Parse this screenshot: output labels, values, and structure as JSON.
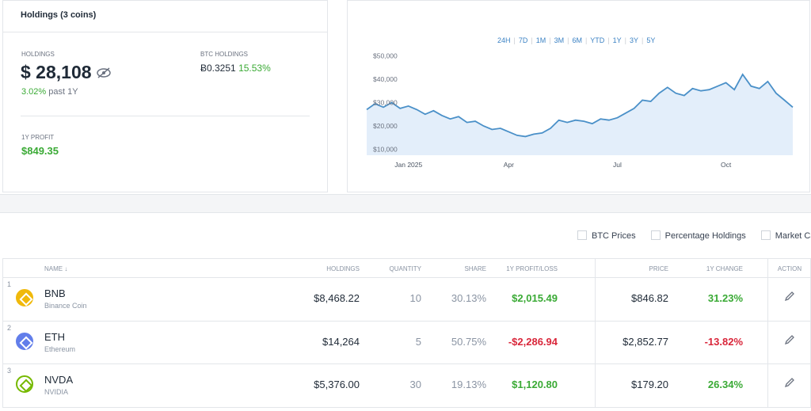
{
  "holdings_card": {
    "title": "Holdings (3 coins)",
    "holdings_label": "HOLDINGS",
    "holdings_value": "$ 28,108",
    "change": "3.02%",
    "change_period": "past 1Y",
    "btc_label": "BTC HOLDINGS",
    "btc_value": "Ƀ0.3251",
    "btc_change": "15.53%",
    "profit_label": "1Y PROFIT",
    "profit_value": "$849.35"
  },
  "chart_data": {
    "type": "line",
    "ranges": [
      "24H",
      "7D",
      "1M",
      "3M",
      "6M",
      "YTD",
      "1Y",
      "3Y",
      "5Y"
    ],
    "categories": [
      null,
      null,
      null,
      null,
      null,
      "Jan 2025",
      null,
      null,
      null,
      null,
      null,
      null,
      null,
      null,
      null,
      null,
      null,
      "Apr",
      null,
      null,
      null,
      null,
      null,
      null,
      null,
      null,
      null,
      null,
      null,
      null,
      "Jul",
      null,
      null,
      null,
      null,
      null,
      null,
      null,
      null,
      null,
      null,
      null,
      null,
      "Oct",
      null,
      null,
      null,
      null,
      null,
      null,
      null,
      null
    ],
    "values": [
      27000,
      29500,
      28000,
      30000,
      27500,
      28500,
      27000,
      25000,
      26500,
      24500,
      23000,
      24000,
      21500,
      22000,
      20000,
      18500,
      19000,
      17500,
      16000,
      15500,
      16500,
      17000,
      19000,
      22500,
      21500,
      22500,
      22000,
      21000,
      23000,
      22500,
      23500,
      25500,
      27500,
      31000,
      30500,
      34000,
      36500,
      34000,
      33000,
      36000,
      35000,
      35500,
      37000,
      38500,
      35500,
      42000,
      37000,
      36000,
      39000,
      34000,
      31000,
      28000
    ],
    "color": "#4a90c8",
    "fill": "#e3eefa",
    "ylim": [
      7500,
      52500
    ],
    "yticks": [
      {
        "value": 10000,
        "label": "$10,000"
      },
      {
        "value": 20000,
        "label": "$20,000"
      },
      {
        "value": 30000,
        "label": "$30,000"
      },
      {
        "value": 40000,
        "label": "$40,000"
      },
      {
        "value": 50000,
        "label": "$50,000"
      }
    ]
  },
  "filters": [
    "BTC Prices",
    "Percentage Holdings",
    "Market Cap"
  ],
  "table": {
    "columns": [
      "NAME",
      "HOLDINGS",
      "QUANTITY",
      "SHARE",
      "1Y PROFIT/LOSS",
      "PRICE",
      "1Y CHANGE",
      "ACTION"
    ],
    "rows": [
      [
        "1",
        "BNB",
        "Binance Coin",
        "$8,468.22",
        "10",
        "30.13%",
        "$2,015.49",
        "$846.82",
        "31.23%"
      ],
      [
        "2",
        "ETH",
        "Ethereum",
        "$14,264",
        "5",
        "50.75%",
        "-$2,286.94",
        "$2,852.77",
        "-13.82%"
      ],
      [
        "3",
        "NVDA",
        "NVIDIA",
        "$5,376.00",
        "30",
        "19.13%",
        "$1,120.80",
        "$179.20",
        "26.34%"
      ]
    ]
  }
}
